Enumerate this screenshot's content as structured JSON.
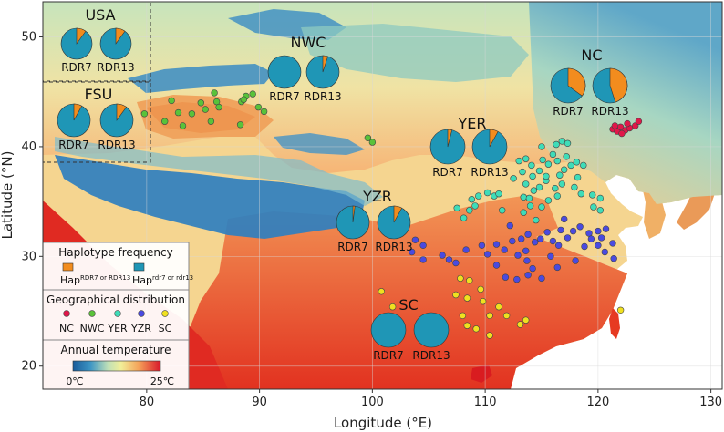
{
  "axes": {
    "xlabel": "Longitude (°E)",
    "ylabel": "Latitude (°N)",
    "x_ticks": [
      "80",
      "90",
      "100",
      "110",
      "120",
      "130"
    ],
    "y_ticks": [
      "20",
      "30",
      "40",
      "50"
    ],
    "lon_range": [
      70.8,
      131
    ],
    "lat_range": [
      17.9,
      53.2
    ]
  },
  "colors": {
    "hap_rdr": "#f28c1e",
    "hap_wild": "#1f96b6",
    "NC": "#e0174a",
    "NWC": "#5ac23a",
    "YER": "#3fdcb8",
    "YZR": "#4a4ae0",
    "SC": "#f0e020"
  },
  "regions": [
    {
      "id": "USA",
      "title": "USA",
      "labels": [
        "RDR7",
        "RDR13"
      ],
      "rdr_fraction": [
        0.1,
        0.1
      ]
    },
    {
      "id": "FSU",
      "title": "FSU",
      "labels": [
        "RDR7",
        "RDR13"
      ],
      "rdr_fraction": [
        0.08,
        0.1
      ]
    },
    {
      "id": "NWC",
      "title": "NWC",
      "labels": [
        "RDR7",
        "RDR13"
      ],
      "rdr_fraction": [
        0.0,
        0.05
      ]
    },
    {
      "id": "NC",
      "title": "NC",
      "labels": [
        "RDR7",
        "RDR13"
      ],
      "rdr_fraction": [
        0.35,
        0.45
      ]
    },
    {
      "id": "YER",
      "title": "YER",
      "labels": [
        "RDR7",
        "RDR13"
      ],
      "rdr_fraction": [
        0.04,
        0.08
      ]
    },
    {
      "id": "YZR",
      "title": "YZR",
      "labels": [
        "RDR7",
        "RDR13"
      ],
      "rdr_fraction": [
        0.02,
        0.08
      ]
    },
    {
      "id": "SC",
      "title": "SC",
      "labels": [
        "RDR7",
        "RDR13"
      ],
      "rdr_fraction": [
        0.0,
        0.0
      ]
    }
  ],
  "legend": {
    "hap_title": "Haplotype frequency",
    "hap_rdr_main": "Hap",
    "hap_rdr_sup": "RDR7 or RDR13",
    "hap_wild_main": "Hap",
    "hap_wild_sup": "rdr7 or rdr13",
    "geo_title": "Geographical distribution",
    "geo_items": [
      "NC",
      "NWC",
      "YER",
      "YZR",
      "SC"
    ],
    "temp_title": "Annual temperature",
    "temp_min": "0℃",
    "temp_max": "25℃"
  },
  "samples": {
    "NC": [
      [
        121.3,
        41.6
      ],
      [
        121.7,
        41.4
      ],
      [
        122,
        41.8
      ],
      [
        122.4,
        41.5
      ],
      [
        122.8,
        41.7
      ],
      [
        123.3,
        41.9
      ],
      [
        123.6,
        42.3
      ],
      [
        122.1,
        41.2
      ],
      [
        122.6,
        42.1
      ],
      [
        121.5,
        41.9
      ]
    ],
    "NWC": [
      [
        82.2,
        44.2
      ],
      [
        84.8,
        44
      ],
      [
        86.2,
        44.1
      ],
      [
        86,
        44.9
      ],
      [
        88.4,
        44.1
      ],
      [
        88.8,
        44.6
      ],
      [
        89.4,
        44.8
      ],
      [
        89.9,
        43.6
      ],
      [
        90.4,
        43.2
      ],
      [
        86.4,
        43.6
      ],
      [
        84,
        43
      ],
      [
        85.7,
        42.3
      ],
      [
        88.3,
        42
      ],
      [
        82.8,
        43.1
      ],
      [
        79.8,
        43
      ],
      [
        81.6,
        42.3
      ],
      [
        83.2,
        41.9
      ],
      [
        99.6,
        40.8
      ],
      [
        100,
        40.4
      ],
      [
        88.6,
        44.3
      ],
      [
        85.2,
        43.4
      ]
    ],
    "YER": [
      [
        113,
        38.7
      ],
      [
        113.6,
        38.9
      ],
      [
        114.1,
        38.3
      ],
      [
        113.3,
        37.7
      ],
      [
        114.2,
        37.3
      ],
      [
        113.6,
        36.6
      ],
      [
        114.3,
        36
      ],
      [
        113.4,
        35.4
      ],
      [
        114,
        34.6
      ],
      [
        113.4,
        34
      ],
      [
        114.5,
        33.3
      ],
      [
        115,
        34.5
      ],
      [
        115.6,
        35.1
      ],
      [
        116.2,
        36.2
      ],
      [
        115.4,
        36.9
      ],
      [
        116.6,
        37.4
      ],
      [
        117,
        37.9
      ],
      [
        117.6,
        38.3
      ],
      [
        116.4,
        38.7
      ],
      [
        117.2,
        39.1
      ],
      [
        118.1,
        38.6
      ],
      [
        118.7,
        38.3
      ],
      [
        116.8,
        36.6
      ],
      [
        117.9,
        36.3
      ],
      [
        118.5,
        35.7
      ],
      [
        119.5,
        35.6
      ],
      [
        120.2,
        35.3
      ],
      [
        119.6,
        34.5
      ],
      [
        116.3,
        40.2
      ],
      [
        116.8,
        40.5
      ],
      [
        117.3,
        40.3
      ],
      [
        115.6,
        38.4
      ],
      [
        114.8,
        37.8
      ],
      [
        115.1,
        38.8
      ],
      [
        108.8,
        35.2
      ],
      [
        109.4,
        35.5
      ],
      [
        110.2,
        35.8
      ],
      [
        110.8,
        35.5
      ],
      [
        111.2,
        35.7
      ],
      [
        108.6,
        34.2
      ],
      [
        109.1,
        34.6
      ],
      [
        107.5,
        34.4
      ],
      [
        108.1,
        33.5
      ],
      [
        111.5,
        34.2
      ],
      [
        112.5,
        37.1
      ],
      [
        116,
        39.3
      ],
      [
        115.4,
        37.3
      ],
      [
        114.8,
        36.3
      ],
      [
        113.9,
        35.3
      ],
      [
        118.2,
        37.2
      ],
      [
        116.4,
        35.5
      ],
      [
        115,
        40
      ],
      [
        120.2,
        34.2
      ]
    ],
    "YZR": [
      [
        103.8,
        31.5
      ],
      [
        104.5,
        31
      ],
      [
        103.5,
        30.4
      ],
      [
        104.5,
        29.7
      ],
      [
        106.2,
        30.1
      ],
      [
        106.8,
        29.7
      ],
      [
        107.4,
        29.4
      ],
      [
        108.3,
        30.6
      ],
      [
        109.7,
        31
      ],
      [
        111,
        31.1
      ],
      [
        111.7,
        30.6
      ],
      [
        112.4,
        31.4
      ],
      [
        113.2,
        31.6
      ],
      [
        113.8,
        32
      ],
      [
        114.4,
        31.3
      ],
      [
        114.9,
        31.6
      ],
      [
        115.5,
        32.2
      ],
      [
        113.6,
        30.5
      ],
      [
        112.9,
        30.1
      ],
      [
        113.7,
        29.6
      ],
      [
        115.8,
        30
      ],
      [
        116.5,
        31
      ],
      [
        117.3,
        31.7
      ],
      [
        117.8,
        32.3
      ],
      [
        118.4,
        32.7
      ],
      [
        119.2,
        32.1
      ],
      [
        120,
        32.3
      ],
      [
        120.3,
        31.7
      ],
      [
        120.7,
        32.5
      ],
      [
        121.3,
        31.2
      ],
      [
        119.4,
        31.6
      ],
      [
        118.8,
        30.9
      ],
      [
        117,
        33.4
      ],
      [
        116.7,
        32.4
      ],
      [
        111.8,
        28.1
      ],
      [
        112.8,
        27.9
      ],
      [
        113.8,
        28.3
      ],
      [
        115,
        28
      ],
      [
        116.4,
        29
      ],
      [
        118,
        29.6
      ],
      [
        111,
        29.2
      ],
      [
        110.2,
        30.2
      ],
      [
        112.2,
        32.8
      ],
      [
        114.2,
        28.9
      ],
      [
        116,
        31.4
      ],
      [
        120,
        31
      ],
      [
        120.6,
        30.4
      ],
      [
        121.4,
        29.8
      ]
    ],
    "SC": [
      [
        100.8,
        26.8
      ],
      [
        101.8,
        25.4
      ],
      [
        107.8,
        28
      ],
      [
        108.6,
        27.8
      ],
      [
        109.6,
        27
      ],
      [
        107.4,
        26.5
      ],
      [
        108.4,
        26.2
      ],
      [
        109.8,
        25.9
      ],
      [
        111.2,
        25.4
      ],
      [
        110.4,
        24.6
      ],
      [
        111.9,
        24.6
      ],
      [
        108,
        24.6
      ],
      [
        108.4,
        23.7
      ],
      [
        109.2,
        23.4
      ],
      [
        110.4,
        22.8
      ],
      [
        113.1,
        23.8
      ],
      [
        113.6,
        24.2
      ],
      [
        122,
        25.1
      ]
    ]
  }
}
